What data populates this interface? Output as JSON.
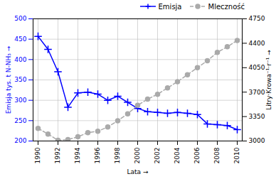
{
  "chart_data": {
    "type": "line",
    "xlabel": "Lata",
    "ylabel": "Emisja tys. t N-NH₃",
    "y2label": "Litry·Krowa⁻¹·r⁻¹",
    "x": [
      1990,
      1991,
      1992,
      1993,
      1994,
      1995,
      1996,
      1997,
      1998,
      1999,
      2000,
      2001,
      2002,
      2003,
      2004,
      2005,
      2006,
      2007,
      2008,
      2009,
      2010
    ],
    "series": [
      {
        "name": "Emisja",
        "color": "#0000FF",
        "marker": "plus",
        "line_style": "solid",
        "values": [
          457,
          425,
          370,
          283,
          318,
          320,
          315,
          300,
          310,
          295,
          280,
          272,
          270,
          268,
          270,
          268,
          265,
          242,
          240,
          238,
          228
        ]
      },
      {
        "name": "Mleczność",
        "color": "#aaaaaa",
        "marker": "circle",
        "line_style": "dashed",
        "axis": "y2",
        "values": [
          3180,
          3100,
          3010,
          3020,
          3060,
          3120,
          3140,
          3200,
          3290,
          3390,
          3510,
          3600,
          3670,
          3760,
          3850,
          3950,
          4050,
          4150,
          4270,
          4350,
          4440
        ]
      }
    ],
    "xlim": [
      1989.5,
      2010.5
    ],
    "xticks": [
      1990,
      1992,
      1994,
      1996,
      1998,
      2000,
      2002,
      2004,
      2006,
      2008,
      2010
    ],
    "ylim": [
      200,
      500
    ],
    "yticks": [
      200,
      250,
      300,
      350,
      400,
      450,
      500
    ],
    "y2lim": [
      3000,
      4750
    ],
    "y2ticks": [
      3000,
      3350,
      3700,
      4050,
      4400,
      4750
    ],
    "grid": true,
    "legend": "upper right"
  }
}
